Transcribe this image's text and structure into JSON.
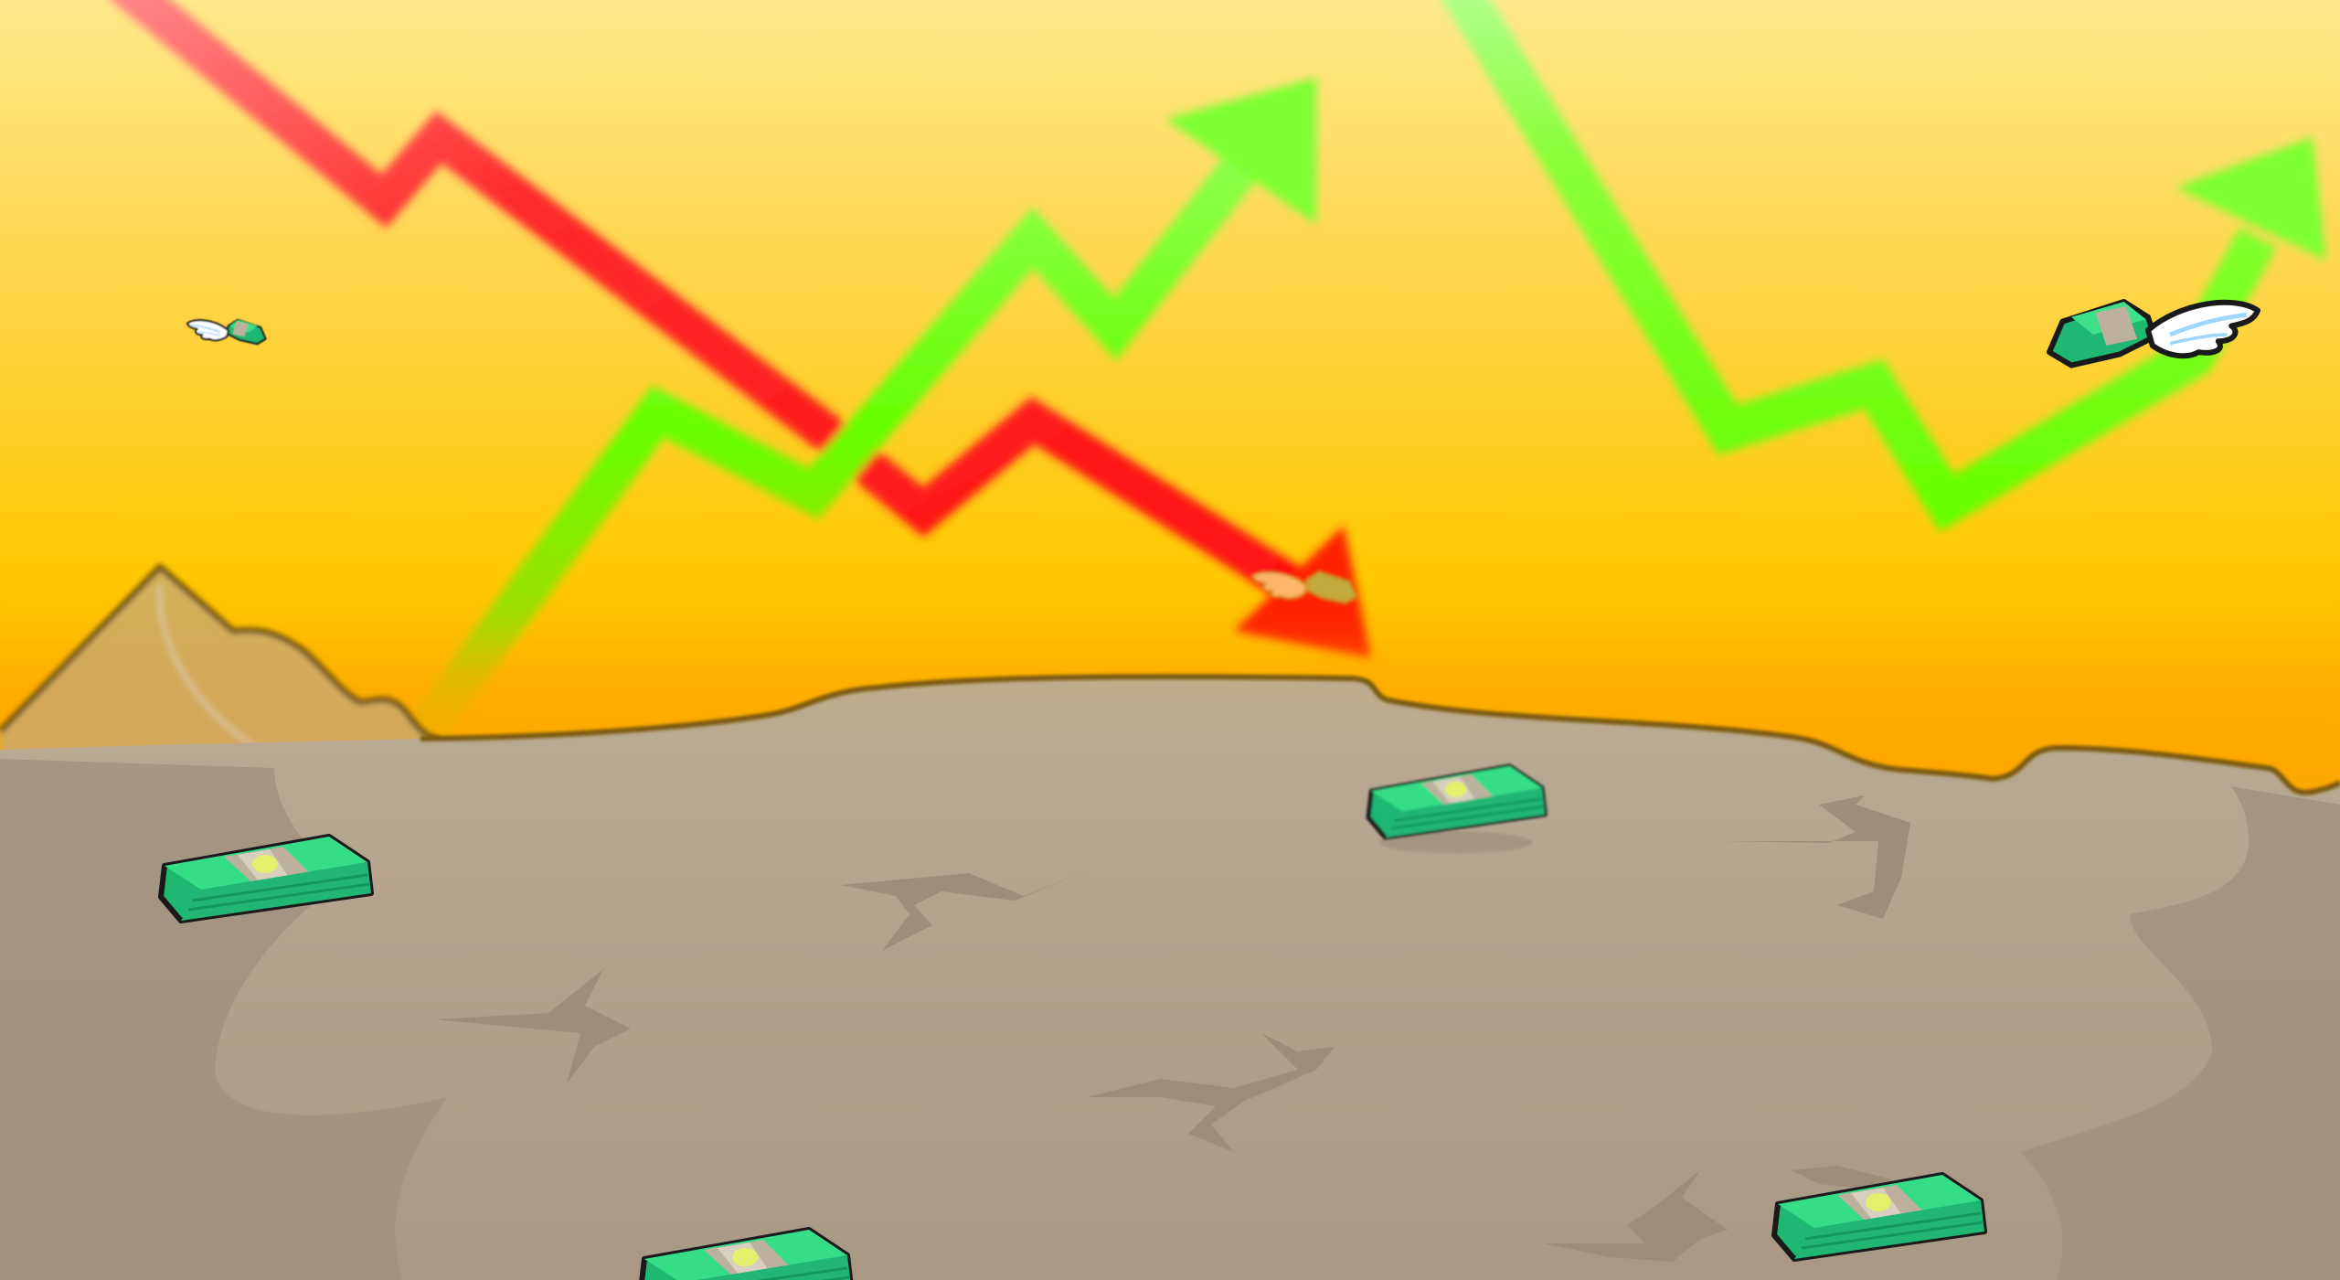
{
  "scene": {
    "kind": "game-background",
    "theme": "stock-market-wasteland",
    "elements": {
      "trend_lines": [
        {
          "id": "falling-trend-arrow",
          "direction": "down",
          "color": "#ff1e1e"
        },
        {
          "id": "rising-trend-arrow-left",
          "direction": "up",
          "color": "#66ff00"
        },
        {
          "id": "rising-trend-arrow-right",
          "direction": "up",
          "color": "#66ff00"
        }
      ],
      "flying_money_count": 3,
      "ground_money_count": 4,
      "ground_cracks": 6
    },
    "colors": {
      "sky_top": "#ffe98a",
      "sky_mid": "#ffc800",
      "sky_horizon": "#ffab00",
      "ground_light": "#bbab95",
      "ground_dark": "#a2927e",
      "outline": "#7a5a10",
      "cash_green": "#22c57a",
      "cash_light": "#3ee08a",
      "cash_band": "#b9ad9a",
      "wing_white": "#ffffff",
      "wing_shade": "#9fd6ff",
      "up_green": "#66ff00",
      "down_red": "#ff1e1e"
    },
    "icons": [
      "flying-money-icon",
      "money-stack-icon",
      "trend-up-arrow-icon",
      "trend-down-arrow-icon"
    ]
  }
}
